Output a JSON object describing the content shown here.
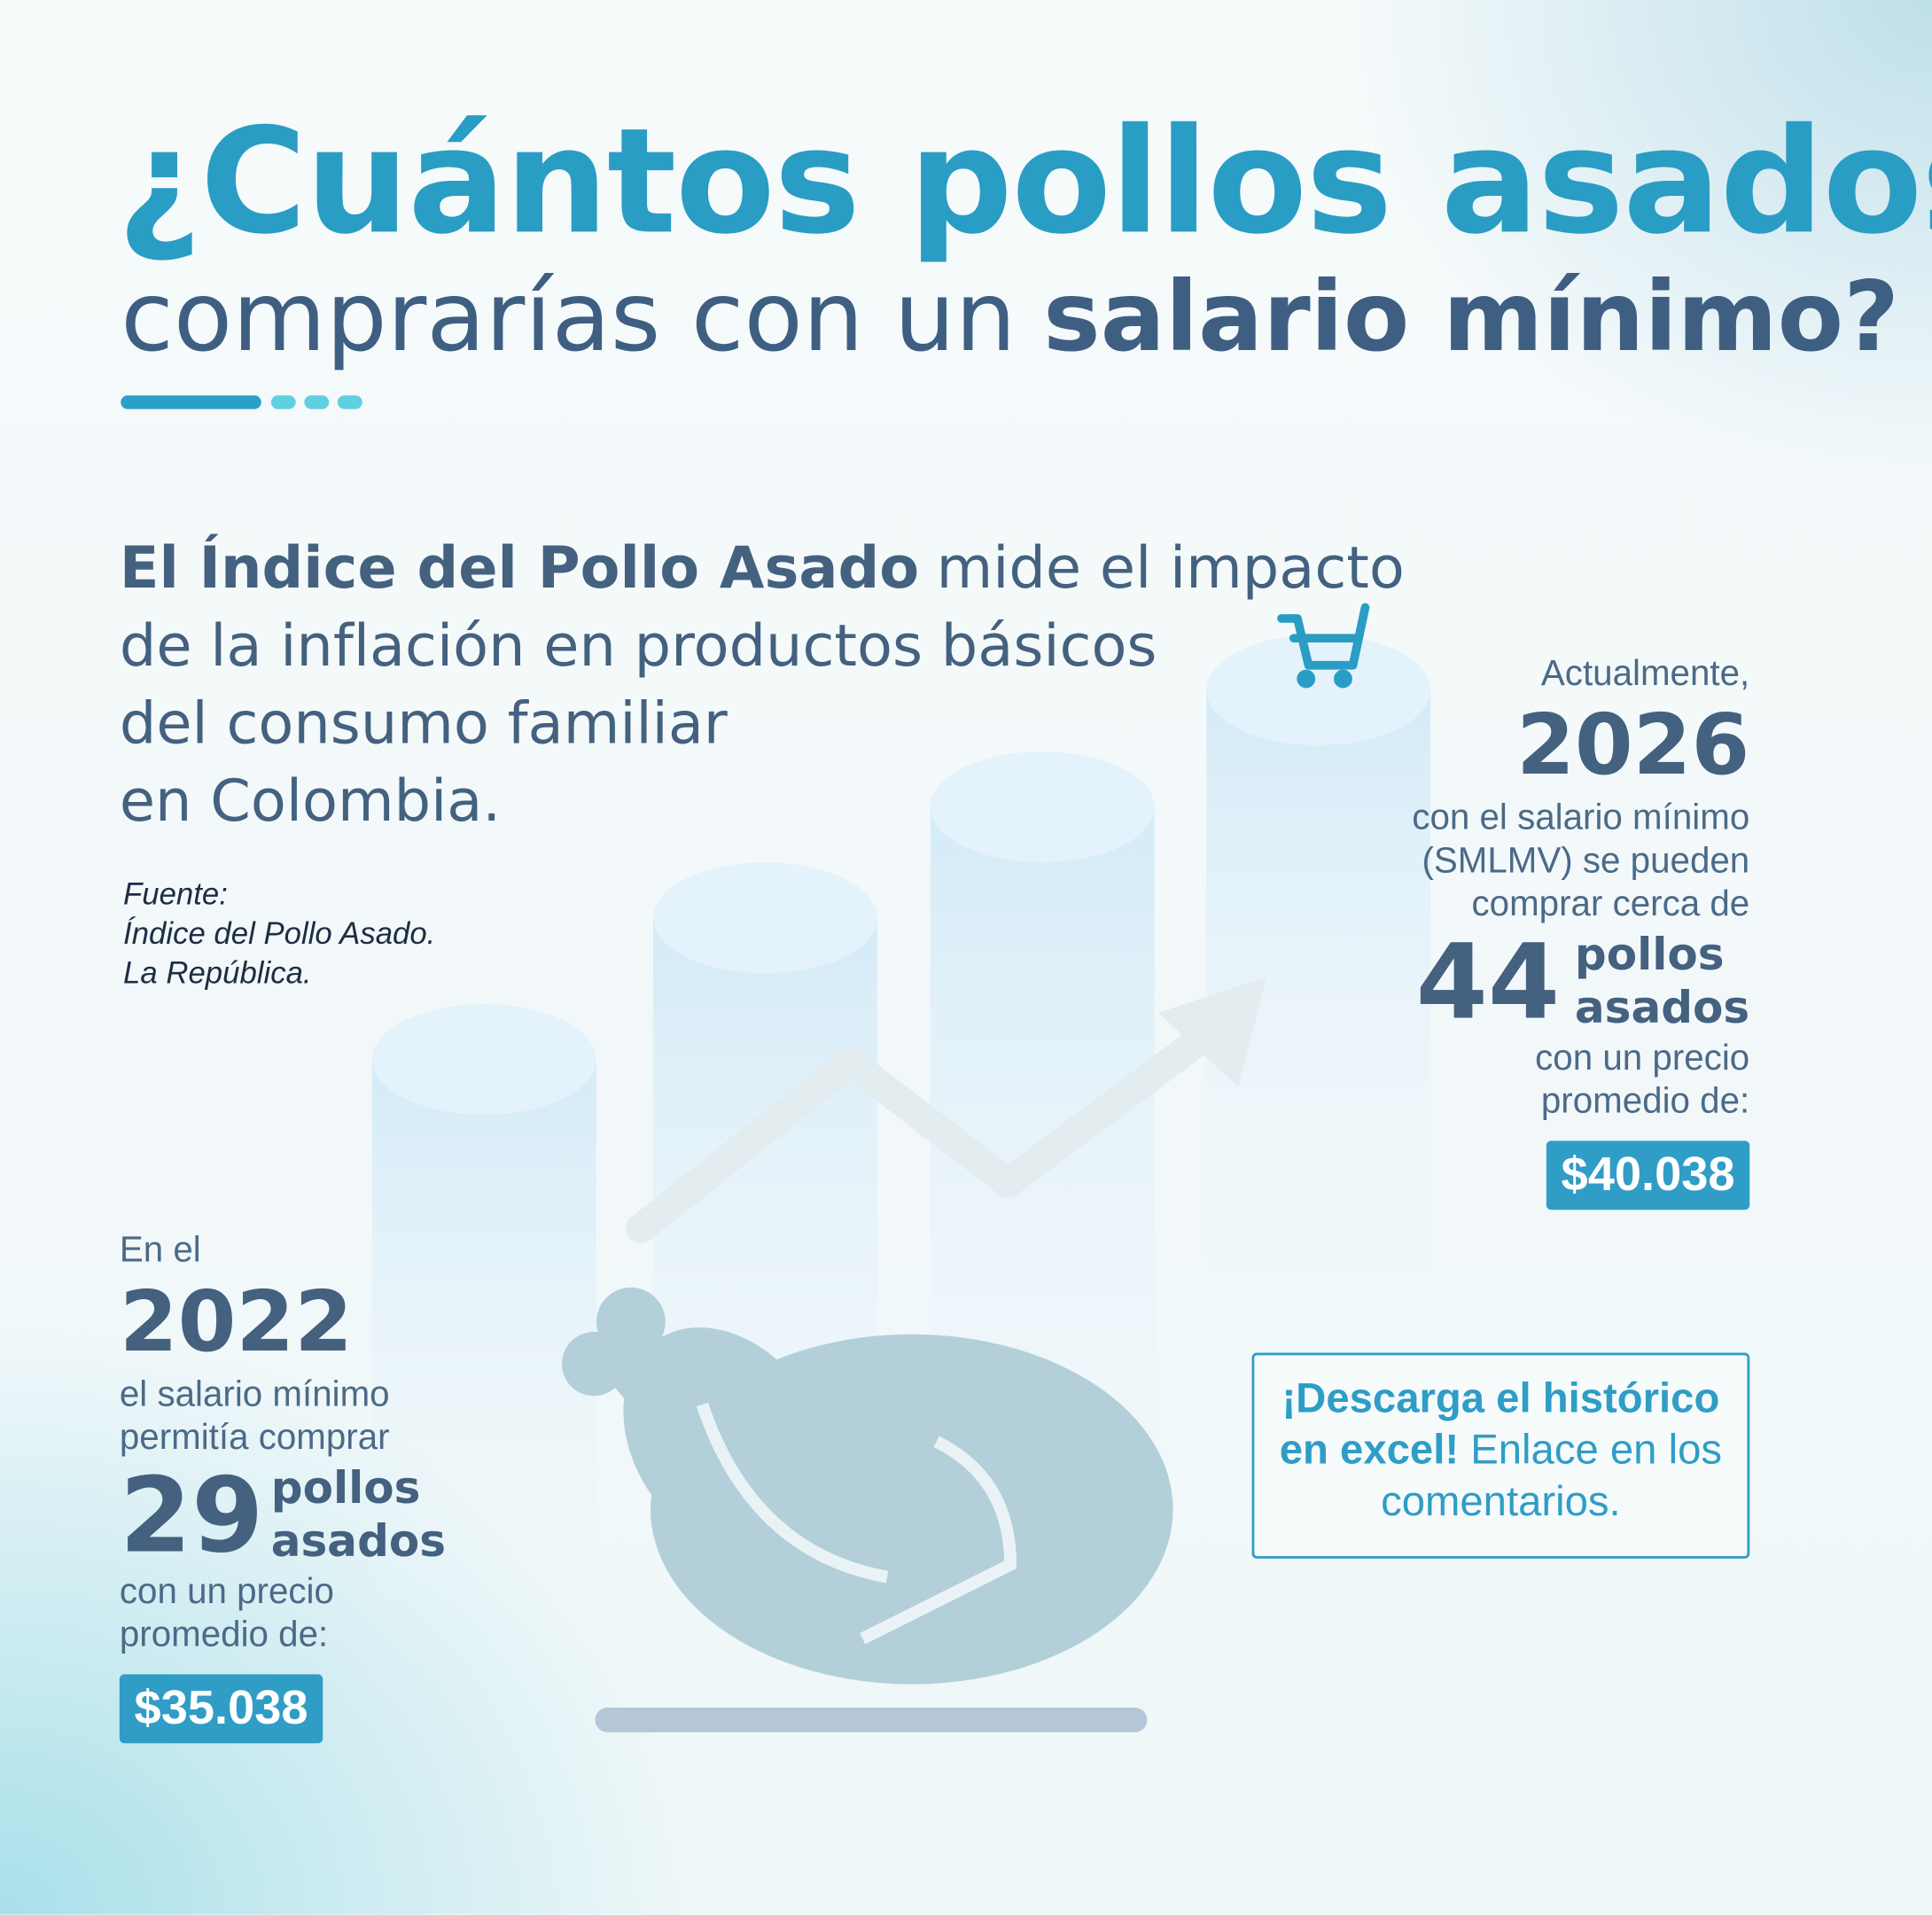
{
  "header": {
    "title_line1": "¿Cuántos pollos asados",
    "title_line2": "comprarías con un",
    "title_line2_bold": "salario mínimo?"
  },
  "intro": {
    "bold": "El Índice del Pollo Asado",
    "lines": [
      "mide el impacto",
      "de la inflación en productos básicos",
      "del consumo familiar",
      "en Colombia."
    ]
  },
  "source": {
    "label": "Fuente:",
    "lines": [
      "Índice del Pollo Asado.",
      "La República."
    ]
  },
  "current": {
    "intro": "Actualmente,",
    "year": "2026",
    "lines": [
      "con el salario mínimo",
      "(SMLMV) se pueden",
      "comprar cerca de"
    ],
    "count": "44",
    "unit": [
      "pollos",
      "asados"
    ],
    "price_lines": [
      "con un precio",
      "promedio de:"
    ],
    "price": "$40.038"
  },
  "past": {
    "intro": "En el",
    "year": "2022",
    "lines": [
      "el salario mínimo",
      "permitía comprar"
    ],
    "count": "29",
    "unit": [
      "pollos",
      "asados"
    ],
    "price_lines": [
      "con un precio",
      "promedio de:"
    ],
    "price": "$35.038"
  },
  "cta": {
    "bold_lines": [
      "¡Descarga el histórico",
      "en excel!"
    ],
    "lines": [
      "Enlace en los",
      "comentarios."
    ]
  }
}
